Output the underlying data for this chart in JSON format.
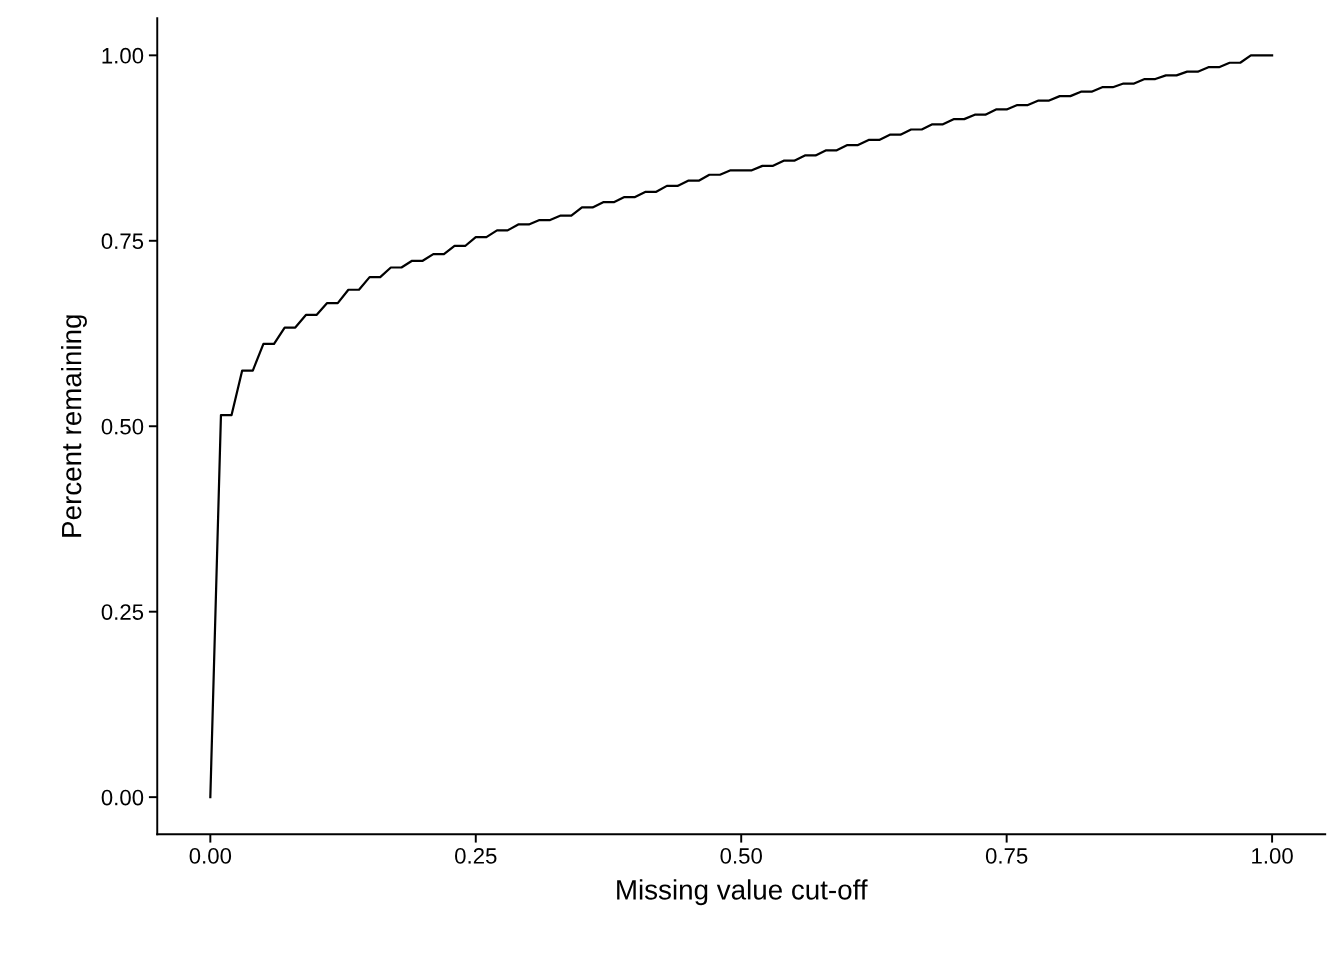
{
  "chart_data": {
    "type": "line",
    "xlabel": "Missing value cut-off",
    "ylabel": "Percent remaining",
    "x": [
      0,
      0.01,
      0.02,
      0.03,
      0.04,
      0.05,
      0.06,
      0.07,
      0.08,
      0.09,
      0.1,
      0.11,
      0.12,
      0.13,
      0.14,
      0.15,
      0.16,
      0.17,
      0.18,
      0.19,
      0.2,
      0.21,
      0.22,
      0.23,
      0.24,
      0.25,
      0.26,
      0.27,
      0.28,
      0.29,
      0.3,
      0.31,
      0.32,
      0.33,
      0.34,
      0.35,
      0.36,
      0.37,
      0.38,
      0.39,
      0.4,
      0.41,
      0.42,
      0.43,
      0.44,
      0.45,
      0.46,
      0.47,
      0.48,
      0.49,
      0.5,
      0.51,
      0.52,
      0.53,
      0.54,
      0.55,
      0.56,
      0.57,
      0.58,
      0.59,
      0.6,
      0.61,
      0.62,
      0.63,
      0.64,
      0.65,
      0.66,
      0.67,
      0.68,
      0.69,
      0.7,
      0.71,
      0.72,
      0.73,
      0.74,
      0.75,
      0.76,
      0.77,
      0.78,
      0.79,
      0.8,
      0.81,
      0.82,
      0.83,
      0.84,
      0.85,
      0.86,
      0.87,
      0.88,
      0.89,
      0.9,
      0.91,
      0.92,
      0.93,
      0.94,
      0.95,
      0.96,
      0.97,
      0.98,
      0.99,
      1.0
    ],
    "series": [
      {
        "color": "#000000",
        "values": [
          0,
          0.515,
          0.515,
          0.575,
          0.575,
          0.611,
          0.611,
          0.633,
          0.633,
          0.65,
          0.65,
          0.666,
          0.666,
          0.684,
          0.684,
          0.701,
          0.701,
          0.714,
          0.714,
          0.723,
          0.723,
          0.732,
          0.732,
          0.743,
          0.743,
          0.755,
          0.755,
          0.764,
          0.764,
          0.772,
          0.772,
          0.778,
          0.778,
          0.784,
          0.784,
          0.795,
          0.795,
          0.802,
          0.802,
          0.809,
          0.809,
          0.816,
          0.816,
          0.824,
          0.824,
          0.831,
          0.831,
          0.839,
          0.839,
          0.845,
          0.845,
          0.845,
          0.851,
          0.851,
          0.858,
          0.858,
          0.865,
          0.865,
          0.872,
          0.872,
          0.879,
          0.879,
          0.886,
          0.886,
          0.893,
          0.893,
          0.9,
          0.9,
          0.907,
          0.907,
          0.914,
          0.914,
          0.92,
          0.92,
          0.927,
          0.927,
          0.933,
          0.933,
          0.939,
          0.939,
          0.945,
          0.945,
          0.951,
          0.951,
          0.957,
          0.957,
          0.962,
          0.962,
          0.968,
          0.968,
          0.973,
          0.973,
          0.978,
          0.978,
          0.984,
          0.984,
          0.99,
          0.99,
          1.0,
          1.0,
          1.0
        ]
      }
    ],
    "xlim": [
      -0.05,
      1.05
    ],
    "xticks": [
      {
        "value": 0,
        "label": "0.00"
      },
      {
        "value": 0.25,
        "label": "0.25"
      },
      {
        "value": 0.5,
        "label": "0.50"
      },
      {
        "value": 0.75,
        "label": "0.75"
      },
      {
        "value": 1,
        "label": "1.00"
      }
    ],
    "ylim": [
      -0.05,
      1.05
    ],
    "yticks": [
      {
        "value": 0,
        "label": "0.00"
      },
      {
        "value": 0.25,
        "label": "0.25"
      },
      {
        "value": 0.5,
        "label": "0.50"
      },
      {
        "value": 0.75,
        "label": "0.75"
      },
      {
        "value": 1,
        "label": "1.00"
      }
    ],
    "grid": false,
    "legend": false
  }
}
